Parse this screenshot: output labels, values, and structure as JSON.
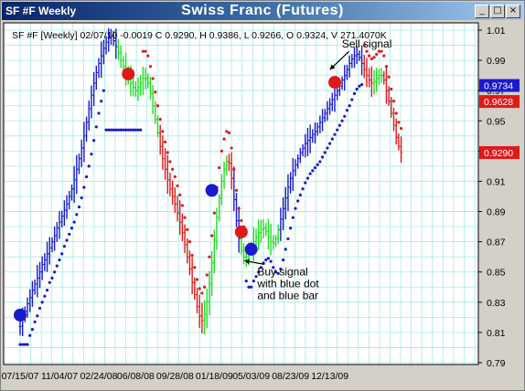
{
  "window": {
    "title_left": "SF #F Weekly",
    "title_center": "Swiss Franc (Futures)",
    "minimize": "_",
    "maximize": "□",
    "close": "×"
  },
  "header": "SF #F [Weekly] 02/07/10 -0.0019 C 0.9290, H 0.9386, L 0.9266, O 0.9324, V 271.4070K",
  "colors": {
    "background": "#ffffff",
    "grid": "#a8e8e8",
    "up_bar": "#1a1acc",
    "neutral_bar": "#22dd22",
    "down_bar": "#dd1a1a",
    "dot_blue": "#1a1acc",
    "dot_red": "#dd1a1a"
  },
  "chart_data": {
    "type": "ohlc",
    "x": [
      "07/15/07",
      "11/04/07",
      "02/24/08",
      "06/08/08",
      "09/28/08",
      "01/18/09",
      "05/03/09",
      "08/23/09",
      "12/13/09"
    ],
    "yticks": [
      0.79,
      0.81,
      0.83,
      0.85,
      0.87,
      0.89,
      0.91,
      0.93,
      0.95,
      0.97,
      0.99,
      1.01
    ],
    "ylim": [
      0.79,
      1.02
    ],
    "price_labels": [
      {
        "text": "0.9734",
        "value": 0.9734,
        "bg": "#1a1acc",
        "color": "#ffffff"
      },
      {
        "text": "0.9628",
        "value": 0.9628,
        "bg": "#dd1a1a",
        "color": "#ffffff"
      },
      {
        "text": "0.9290",
        "value": 0.929,
        "bg": "#dd1a1a",
        "color": "#ffffff"
      }
    ],
    "annotations": [
      {
        "lines": [
          "Sell signal"
        ],
        "date": "2010-01-03",
        "value": 0.996
      },
      {
        "lines": [
          "Buy signal",
          "with blue dot",
          "and blue bar"
        ],
        "date": "2009-05-10",
        "value": 0.849
      }
    ],
    "signals": [
      {
        "date": "2007-07-15",
        "value": 0.8215,
        "color": "blue"
      },
      {
        "date": "2008-05-18",
        "value": 0.981,
        "color": "red"
      },
      {
        "date": "2009-01-11",
        "value": 0.904,
        "color": "blue"
      },
      {
        "date": "2009-04-05",
        "value": 0.8765,
        "color": "red"
      },
      {
        "date": "2009-05-03",
        "value": 0.865,
        "color": "blue"
      },
      {
        "date": "2009-12-27",
        "value": 0.9755,
        "color": "red"
      }
    ],
    "closes": [
      0.814,
      0.82,
      0.824,
      0.829,
      0.833,
      0.838,
      0.842,
      0.846,
      0.85,
      0.855,
      0.858,
      0.862,
      0.866,
      0.87,
      0.874,
      0.879,
      0.883,
      0.887,
      0.891,
      0.895,
      0.9,
      0.905,
      0.911,
      0.918,
      0.925,
      0.932,
      0.94,
      0.949,
      0.958,
      0.967,
      0.975,
      0.982,
      0.988,
      0.993,
      0.998,
      1.002,
      1.005,
      1.006,
      1.003,
      0.999,
      0.995,
      0.99,
      0.986,
      0.982,
      0.978,
      0.975,
      0.972,
      0.97,
      0.972,
      0.975,
      0.978,
      0.978,
      0.975,
      0.968,
      0.96,
      0.951,
      0.942,
      0.933,
      0.925,
      0.918,
      0.911,
      0.905,
      0.9,
      0.895,
      0.889,
      0.883,
      0.876,
      0.868,
      0.86,
      0.852,
      0.843,
      0.835,
      0.827,
      0.821,
      0.818,
      0.822,
      0.83,
      0.842,
      0.856,
      0.871,
      0.886,
      0.899,
      0.91,
      0.918,
      0.923,
      0.922,
      0.912,
      0.898,
      0.884,
      0.872,
      0.864,
      0.86,
      0.86,
      0.864,
      0.867,
      0.87,
      0.873,
      0.876,
      0.878,
      0.879,
      0.877,
      0.873,
      0.87,
      0.869,
      0.872,
      0.878,
      0.885,
      0.892,
      0.899,
      0.906,
      0.912,
      0.917,
      0.921,
      0.925,
      0.929,
      0.932,
      0.935,
      0.937,
      0.939,
      0.941,
      0.943,
      0.946,
      0.949,
      0.952,
      0.955,
      0.958,
      0.961,
      0.964,
      0.967,
      0.97,
      0.973,
      0.977,
      0.98,
      0.984,
      0.988,
      0.991,
      0.993,
      0.994,
      0.992,
      0.988,
      0.984,
      0.98,
      0.977,
      0.975,
      0.976,
      0.978,
      0.98,
      0.98,
      0.977,
      0.97,
      0.963,
      0.955,
      0.947,
      0.939,
      0.933,
      0.929
    ],
    "start_date": "2007-07-15"
  }
}
